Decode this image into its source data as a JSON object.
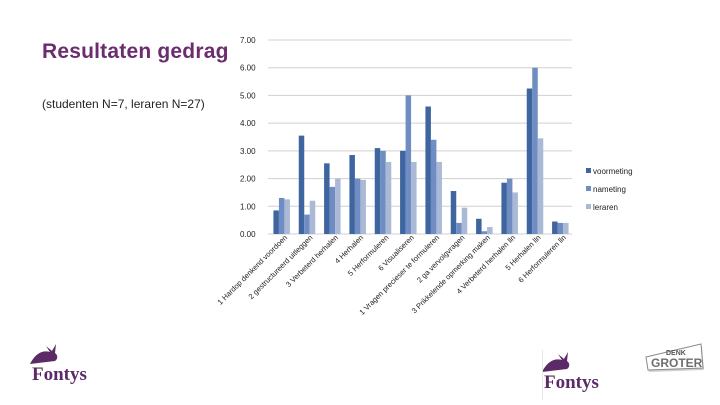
{
  "slide": {
    "title": "Resultaten gedrag",
    "subtitle": "(studenten N=7, leraren N=27)"
  },
  "logos": {
    "left_brand": "Fontys",
    "right_brand": "Fontys",
    "denk_logo_top": "DENK",
    "denk_logo_bottom": "GROTER"
  },
  "colors": {
    "title": "#6b2d6f",
    "voormeting": "#3f65a0",
    "nameting": "#6f8dc3",
    "leraren": "#aab9d6",
    "brand": "#5c2a66"
  },
  "chart_data": {
    "type": "bar",
    "ylim": [
      0,
      7
    ],
    "ytick_labels": [
      "0.00",
      "1.00",
      "2.00",
      "3.00",
      "4.00",
      "5.00",
      "6.00",
      "7.00"
    ],
    "grid": true,
    "legend_position": "right",
    "categories": [
      "1 Hardop denkend voordoen",
      "2 gestructureerd uitleggen",
      "3 Verbeterd herhalen",
      "4 Herhalen",
      "5 Herformuleren",
      "6 Visualiseren",
      "1 Vragen precieser te formuleren",
      "2 ga vervolgvragen",
      "3 Prikkelende opmerking maken",
      "4 Verbeterd herhalen lln",
      "5 Herhalen lln",
      "6 Herformuleren lln"
    ],
    "series": [
      {
        "name": "voormeting",
        "values": [
          0.85,
          3.55,
          2.55,
          2.85,
          3.1,
          3.0,
          4.6,
          1.55,
          0.55,
          1.85,
          5.25,
          0.45
        ]
      },
      {
        "name": "nameting",
        "values": [
          1.3,
          0.7,
          1.7,
          2.0,
          3.0,
          5.0,
          3.4,
          0.4,
          0.1,
          2.0,
          6.0,
          0.4
        ]
      },
      {
        "name": "leraren",
        "values": [
          1.25,
          1.2,
          2.0,
          1.95,
          2.6,
          2.6,
          2.6,
          0.95,
          0.25,
          1.5,
          3.45,
          0.4
        ]
      }
    ]
  }
}
